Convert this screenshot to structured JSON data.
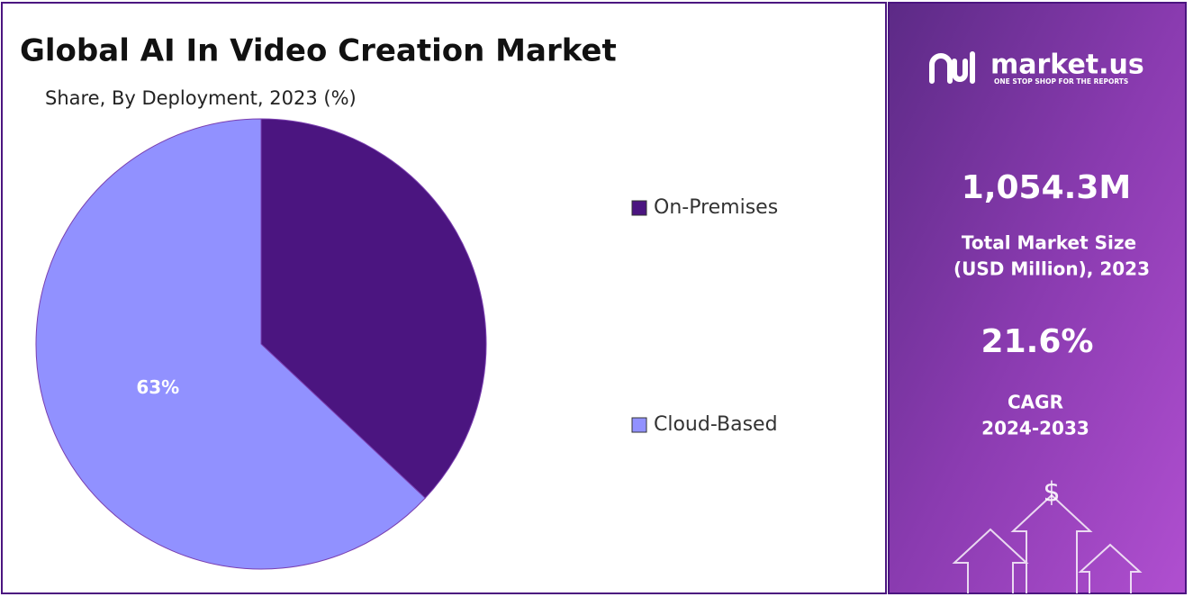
{
  "chart_data": {
    "type": "pie",
    "title": "Global AI In Video Creation Market",
    "subtitle": "Share, By Deployment, 2023 (%)",
    "categories": [
      "On-Premises",
      "Cloud-Based"
    ],
    "values": [
      37,
      63
    ],
    "value_labels": [
      null,
      "63%"
    ],
    "colors": [
      "#4b1580",
      "#9191ff"
    ]
  },
  "panel": {
    "logo": "market.us",
    "tagline": "ONE STOP SHOP FOR THE REPORTS",
    "market_size": "1,054.3M",
    "market_size_label_1": "Total Market Size",
    "market_size_label_2": "(USD Million), 2023",
    "cagr": "21.6%",
    "cagr_label_1": "CAGR",
    "cagr_label_2": "2024-2033"
  }
}
